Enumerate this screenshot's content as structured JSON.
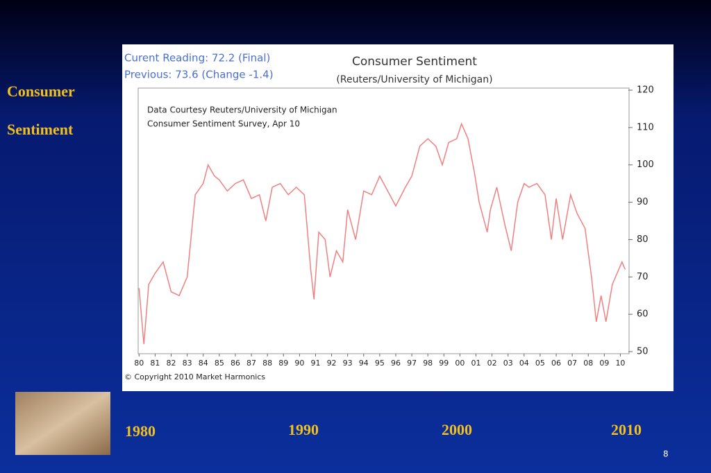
{
  "slide": {
    "heading": [
      "Consumer",
      "Sentiment"
    ],
    "years": [
      "1980",
      "1990",
      "2000",
      "2010"
    ],
    "page_number": "8"
  },
  "chart_data": {
    "type": "line",
    "title": "Consumer Sentiment",
    "subtitle": "(Reuters/University of Michigan)",
    "annotations": [
      "Curent Reading:  72.2 (Final)",
      "Previous:  73.6 (Change -1.4)",
      "Data Courtesy Reuters/University of Michigan",
      "Consumer Sentiment Survey, Apr 10",
      "© Copyright 2010 Market Harmonics"
    ],
    "color": "#f08080",
    "x": [
      1980.0,
      1980.3,
      1980.6,
      1981.0,
      1981.5,
      1982.0,
      1982.5,
      1983.0,
      1983.5,
      1984.0,
      1984.3,
      1984.7,
      1985.0,
      1985.5,
      1986.0,
      1986.5,
      1987.0,
      1987.5,
      1987.9,
      1988.3,
      1988.8,
      1989.3,
      1989.8,
      1990.3,
      1990.7,
      1990.9,
      1991.2,
      1991.6,
      1991.9,
      1992.3,
      1992.7,
      1993.0,
      1993.5,
      1994.0,
      1994.5,
      1995.0,
      1995.5,
      1996.0,
      1996.6,
      1997.0,
      1997.5,
      1998.0,
      1998.5,
      1998.9,
      1999.3,
      1999.8,
      2000.1,
      2000.5,
      2000.9,
      2001.2,
      2001.7,
      2001.9,
      2002.3,
      2002.8,
      2003.2,
      2003.6,
      2004.0,
      2004.3,
      2004.8,
      2005.3,
      2005.7,
      2006.0,
      2006.4,
      2006.9,
      2007.3,
      2007.8,
      2008.2,
      2008.5,
      2008.8,
      2009.1,
      2009.5,
      2009.9,
      2010.1,
      2010.3
    ],
    "values": [
      67,
      52,
      68,
      71,
      74,
      66,
      65,
      70,
      92,
      95,
      100,
      97,
      96,
      93,
      95,
      96,
      91,
      92,
      85,
      94,
      95,
      92,
      94,
      92,
      72,
      64,
      82,
      80,
      70,
      77,
      74,
      88,
      80,
      93,
      92,
      97,
      93,
      89,
      94,
      97,
      105,
      107,
      105,
      100,
      106,
      107,
      111,
      107,
      98,
      90,
      82,
      88,
      94,
      84,
      77,
      90,
      95,
      94,
      95,
      92,
      80,
      91,
      80,
      92,
      87,
      83,
      70,
      58,
      65,
      58,
      68,
      72,
      74,
      72
    ],
    "xlim": [
      1979.9,
      2010.5
    ],
    "xticks": [
      {
        "value": 1980,
        "label": "80"
      },
      {
        "value": 1981,
        "label": "81"
      },
      {
        "value": 1982,
        "label": "82"
      },
      {
        "value": 1983,
        "label": "83"
      },
      {
        "value": 1984,
        "label": "84"
      },
      {
        "value": 1985,
        "label": "85"
      },
      {
        "value": 1986,
        "label": "86"
      },
      {
        "value": 1987,
        "label": "87"
      },
      {
        "value": 1988,
        "label": "88"
      },
      {
        "value": 1989,
        "label": "89"
      },
      {
        "value": 1990,
        "label": "90"
      },
      {
        "value": 1991,
        "label": "91"
      },
      {
        "value": 1992,
        "label": "92"
      },
      {
        "value": 1993,
        "label": "93"
      },
      {
        "value": 1994,
        "label": "94"
      },
      {
        "value": 1995,
        "label": "95"
      },
      {
        "value": 1996,
        "label": "96"
      },
      {
        "value": 1997,
        "label": "97"
      },
      {
        "value": 1998,
        "label": "98"
      },
      {
        "value": 1999,
        "label": "99"
      },
      {
        "value": 2000,
        "label": "00"
      },
      {
        "value": 2001,
        "label": "01"
      },
      {
        "value": 2002,
        "label": "02"
      },
      {
        "value": 2003,
        "label": "03"
      },
      {
        "value": 2004,
        "label": "04"
      },
      {
        "value": 2005,
        "label": "05"
      },
      {
        "value": 2006,
        "label": "06"
      },
      {
        "value": 2007,
        "label": "07"
      },
      {
        "value": 2008,
        "label": "08"
      },
      {
        "value": 2009,
        "label": "09"
      },
      {
        "value": 2010,
        "label": "10"
      }
    ],
    "ylim": [
      50,
      120
    ],
    "yticks": [
      50,
      60,
      70,
      80,
      90,
      100,
      110,
      120
    ]
  }
}
